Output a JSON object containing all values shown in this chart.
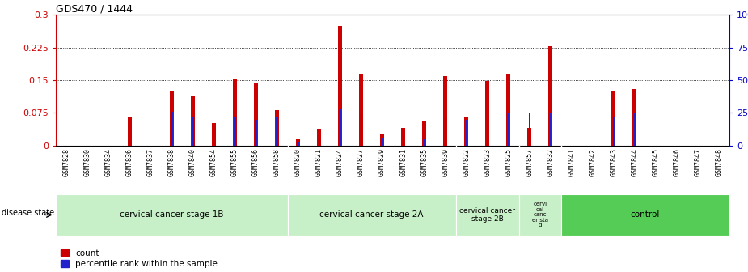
{
  "title": "GDS470 / 1444",
  "samples": [
    "GSM7828",
    "GSM7830",
    "GSM7834",
    "GSM7836",
    "GSM7837",
    "GSM7838",
    "GSM7840",
    "GSM7854",
    "GSM7855",
    "GSM7856",
    "GSM7858",
    "GSM7820",
    "GSM7821",
    "GSM7824",
    "GSM7827",
    "GSM7829",
    "GSM7831",
    "GSM7835",
    "GSM7839",
    "GSM7822",
    "GSM7823",
    "GSM7825",
    "GSM7857",
    "GSM7832",
    "GSM7841",
    "GSM7842",
    "GSM7843",
    "GSM7844",
    "GSM7845",
    "GSM7846",
    "GSM7847",
    "GSM7848"
  ],
  "count": [
    0.0,
    0.0,
    0.0,
    0.065,
    0.0,
    0.125,
    0.115,
    0.052,
    0.152,
    0.143,
    0.082,
    0.015,
    0.038,
    0.275,
    0.163,
    0.025,
    0.04,
    0.055,
    0.16,
    0.065,
    0.148,
    0.165,
    0.04,
    0.228,
    0.0,
    0.0,
    0.125,
    0.13,
    0.0,
    0.0,
    0.0,
    0.0
  ],
  "percentile": [
    0.0,
    0.0,
    0.0,
    3.0,
    0.0,
    26.0,
    22.0,
    0.0,
    22.0,
    20.0,
    22.0,
    3.0,
    5.0,
    28.0,
    25.0,
    6.0,
    7.0,
    5.0,
    22.0,
    20.0,
    20.0,
    25.0,
    25.0,
    25.0,
    0.0,
    0.0,
    22.0,
    25.0,
    0.0,
    0.0,
    0.0,
    0.0
  ],
  "disease_groups": [
    {
      "label": "cervical cancer stage 1B",
      "start": 0,
      "end": 10,
      "color": "#c8f0c8"
    },
    {
      "label": "cervical cancer stage 2A",
      "start": 11,
      "end": 18,
      "color": "#c8f0c8"
    },
    {
      "label": "cervical cancer\nstage 2B",
      "start": 19,
      "end": 21,
      "color": "#c8f0c8"
    },
    {
      "label": "cervi\ncal\ncanc\ner sta\ng",
      "start": 22,
      "end": 23,
      "color": "#c8f0c8"
    },
    {
      "label": "control",
      "start": 24,
      "end": 31,
      "color": "#55cc55"
    }
  ],
  "left_ylim": [
    0,
    0.3
  ],
  "right_ylim": [
    0,
    100
  ],
  "left_yticks": [
    0,
    0.075,
    0.15,
    0.225,
    0.3
  ],
  "left_yticklabels": [
    "0",
    "0.075",
    "0.15",
    "0.225",
    "0.3"
  ],
  "right_yticks": [
    0,
    25,
    50,
    75,
    100
  ],
  "right_yticklabels": [
    "0",
    "25",
    "50",
    "75",
    "100%"
  ],
  "left_color": "#cc0000",
  "right_color": "#0000cc",
  "bar_color": "#cc0000",
  "percentile_color": "#2222cc",
  "bg_color": "#ffffff",
  "xtick_bg": "#d8d8d8"
}
